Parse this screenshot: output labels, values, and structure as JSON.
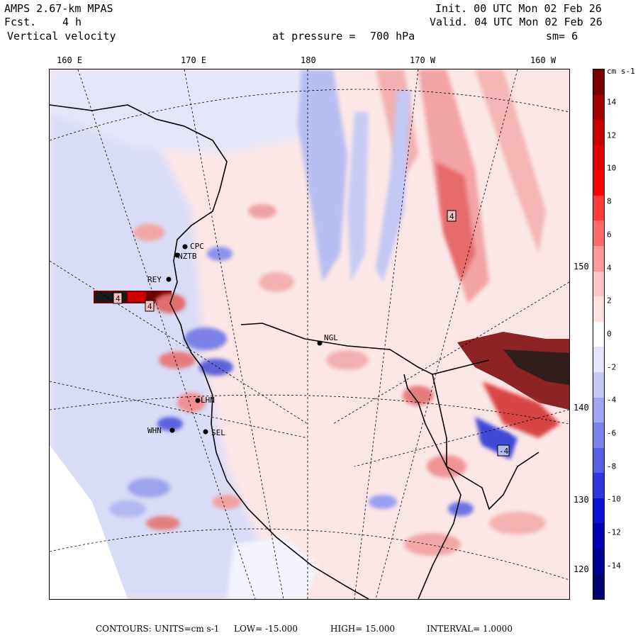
{
  "header": {
    "model": "AMPS 2.67-km MPAS",
    "fcst_label": "Fcst.",
    "fcst_value": "4 h",
    "field": "Vertical velocity",
    "init": "Init. 00 UTC Mon 02 Feb 26",
    "valid": "Valid. 04 UTC Mon 02 Feb 26",
    "pressure_label": "at pressure =",
    "pressure_value": "700 hPa",
    "smooth": "sm= 6"
  },
  "lon_labels": [
    "160 E",
    "170 E",
    "180",
    "170 W",
    "160 W"
  ],
  "lat_labels": [
    "150 W",
    "140 W",
    "130 W",
    "120 W"
  ],
  "stations": [
    "CPC",
    "NZTB",
    "REY",
    "NGL",
    "LHN",
    "WHN",
    "SEL"
  ],
  "contour_box_labels": [
    "4",
    "4",
    "4",
    "-4"
  ],
  "colorbar": {
    "unit": "cm s-1",
    "labels": [
      "14",
      "12",
      "10",
      "8",
      "6",
      "4",
      "2",
      "0",
      "-2",
      "-4",
      "-6",
      "-8",
      "-10",
      "-12",
      "-14"
    ],
    "colors": [
      "#7a0000",
      "#a30000",
      "#c80000",
      "#e30000",
      "#ff0000",
      "#ff3a3a",
      "#ff6a6a",
      "#ff9a9a",
      "#ffc4c4",
      "#fde0e0",
      "#ffffff",
      "#e4e4fb",
      "#c6c8f6",
      "#a2a6f0",
      "#7c82ea",
      "#565ee2",
      "#2f37db",
      "#0b14d4",
      "#0000b4",
      "#000090",
      "#000070"
    ]
  },
  "footer": {
    "contours_label": "CONTOURS:",
    "units": "UNITS=cm s-1",
    "low": "LOW= -15.000",
    "high": "HIGH= 15.000",
    "interval": "INTERVAL= 1.0000"
  },
  "palette": {
    "pos": "#f3a0a0",
    "neg": "#9aa2ee",
    "coast": "#000000"
  }
}
